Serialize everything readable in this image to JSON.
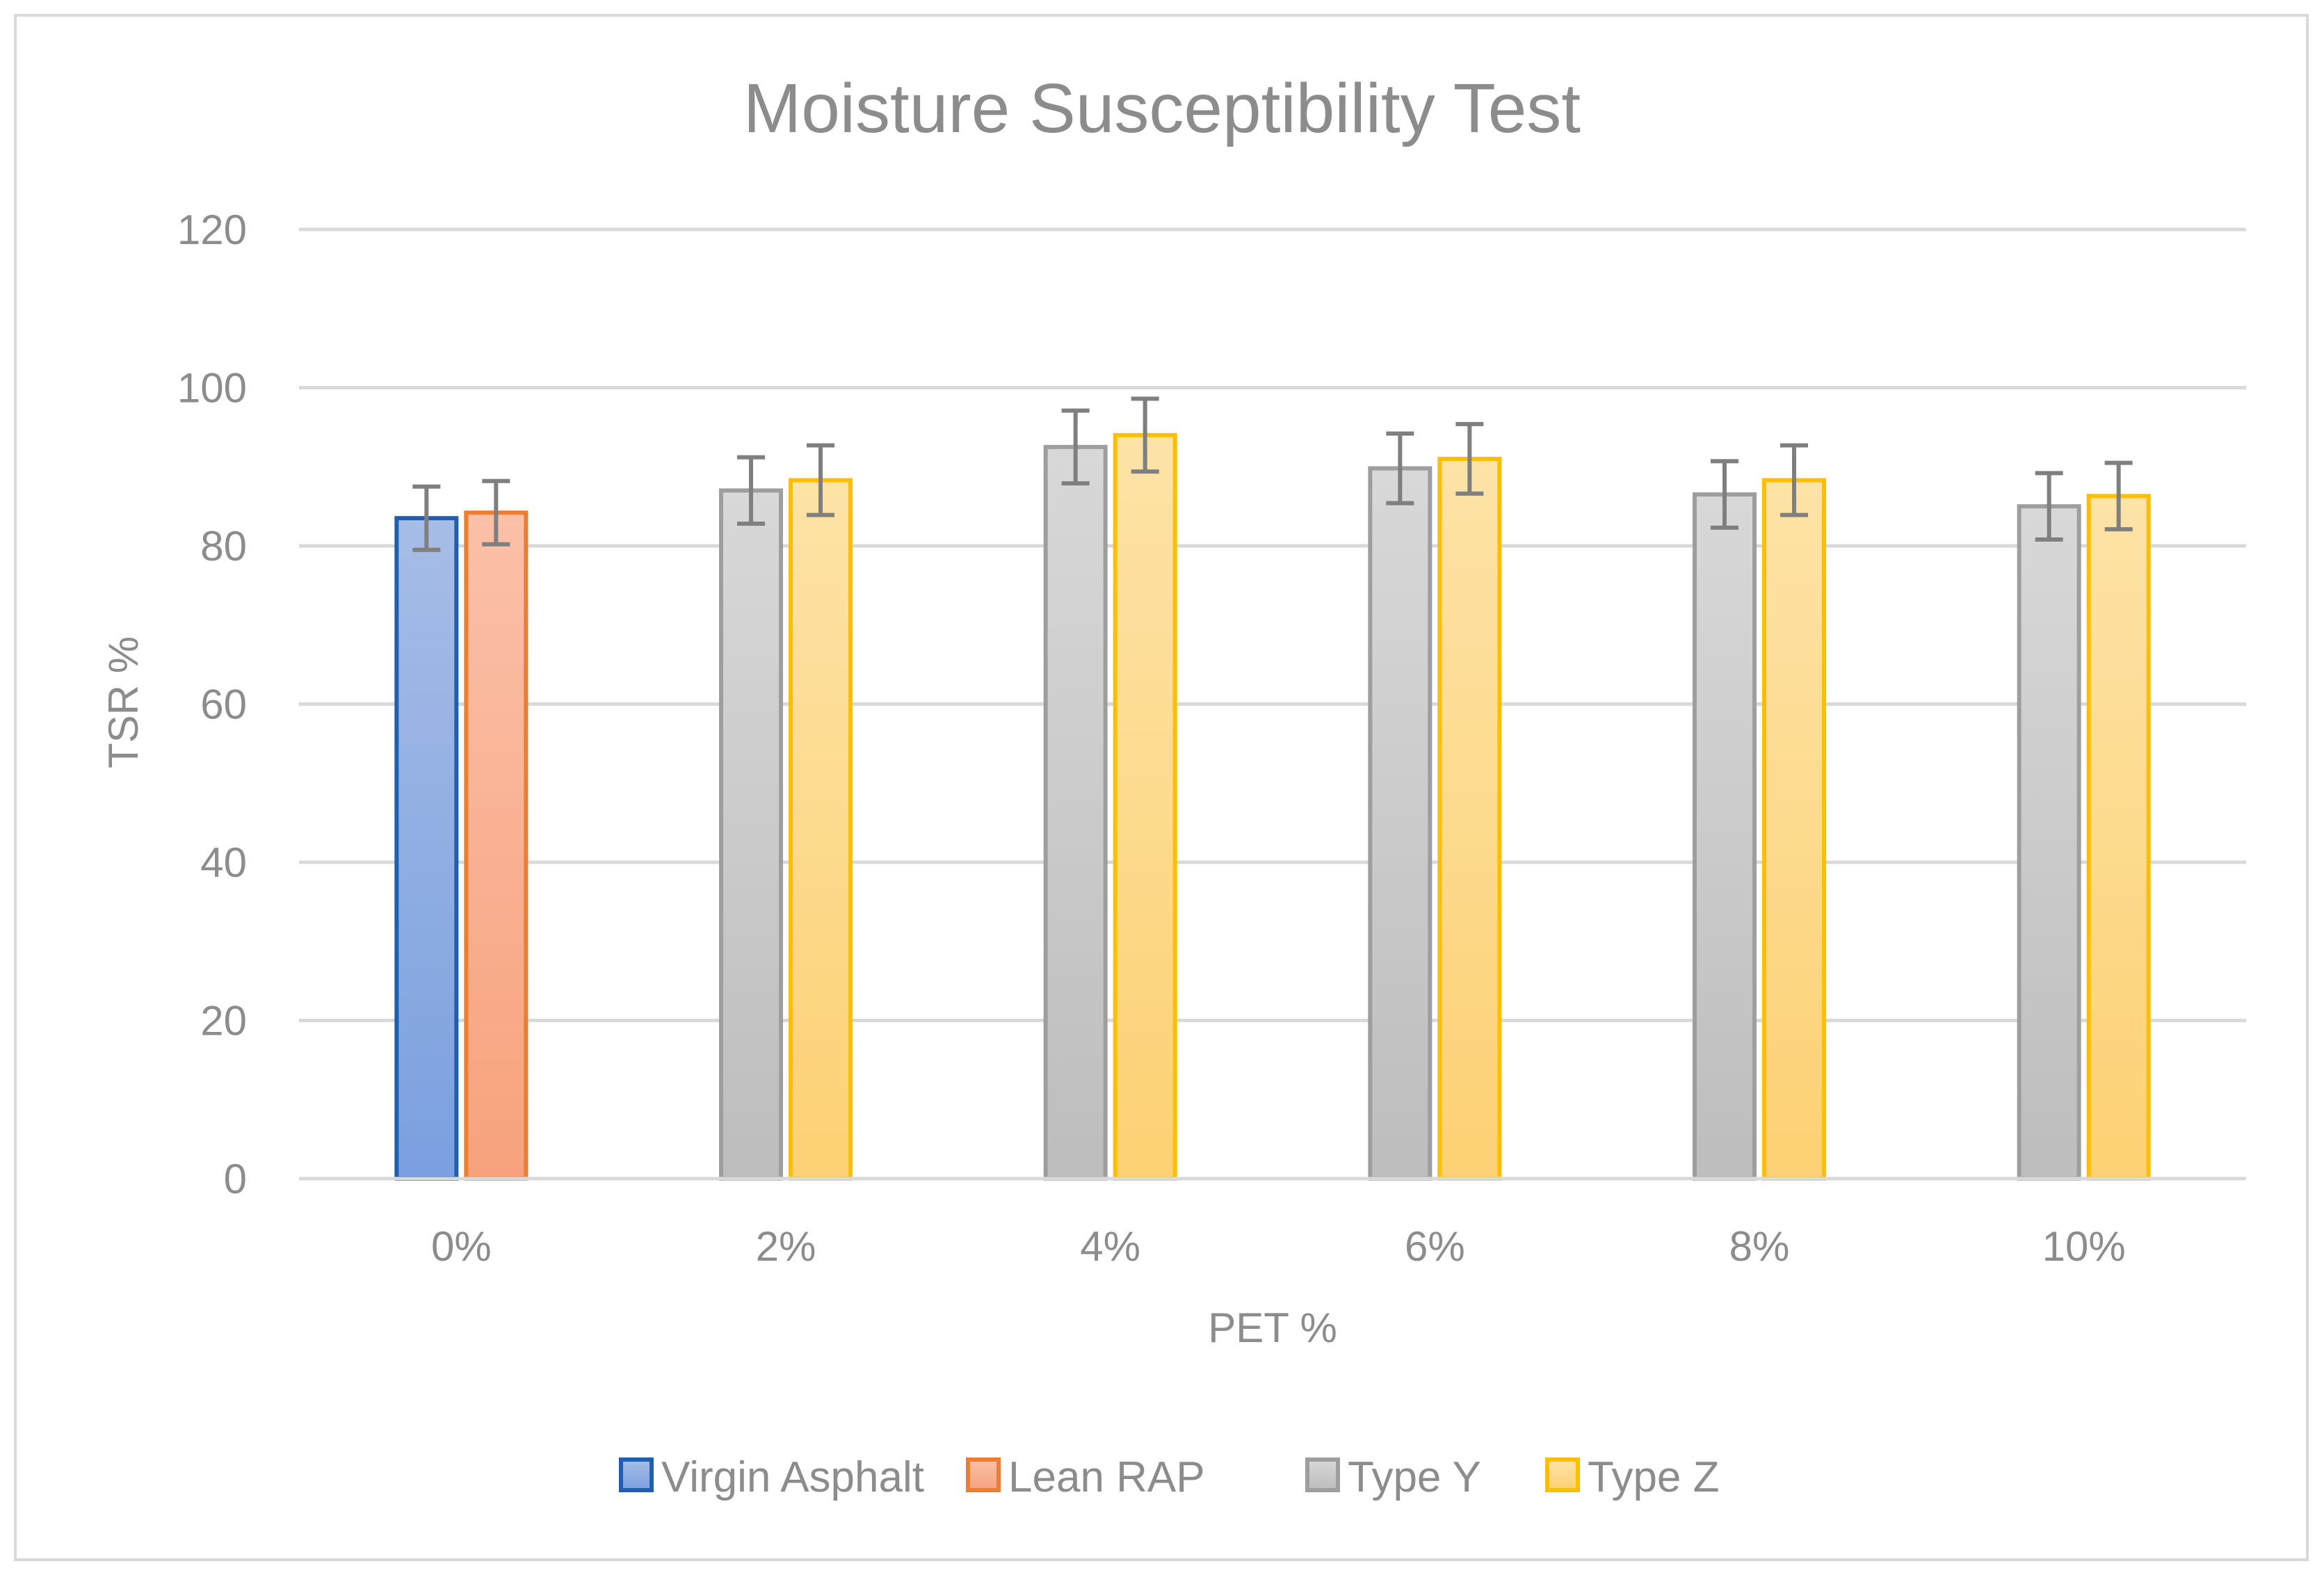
{
  "chart_data": {
    "type": "bar",
    "title": "Moisture Susceptibility Test",
    "xlabel": "PET %",
    "ylabel": "TSR %",
    "ylim": [
      0,
      120
    ],
    "yticks": [
      0,
      20,
      40,
      60,
      80,
      100,
      120
    ],
    "grid": true,
    "legend_position": "bottom",
    "categories": [
      "0%",
      "2%",
      "4%",
      "6%",
      "8%",
      "10%"
    ],
    "series": [
      {
        "name": "Virgin Asphalt",
        "values": [
          83.5,
          null,
          null,
          null,
          null,
          null
        ],
        "error": [
          4,
          null,
          null,
          null,
          null,
          null
        ],
        "fill_top": "#a6bde6",
        "fill_bottom": "#7b9fdf",
        "stroke": "#1f5fb0"
      },
      {
        "name": "Lean RAP",
        "values": [
          84.2,
          null,
          null,
          null,
          null,
          null
        ],
        "error": [
          4,
          null,
          null,
          null,
          null,
          null
        ],
        "fill_top": "#fbc0a8",
        "fill_bottom": "#f7a27d",
        "stroke": "#ed7d31"
      },
      {
        "name": "Type Y",
        "values": [
          null,
          87,
          92.5,
          89.8,
          86.5,
          85
        ],
        "error": [
          null,
          4.2,
          4.6,
          4.4,
          4.2,
          4.2
        ],
        "fill_top": "#d8d8d8",
        "fill_bottom": "#bdbdbd",
        "stroke": "#9e9e9e"
      },
      {
        "name": "Type Z",
        "values": [
          null,
          88.3,
          94,
          91,
          88.3,
          86.3
        ],
        "error": [
          null,
          4.4,
          4.6,
          4.4,
          4.4,
          4.2
        ],
        "fill_top": "#fde3a7",
        "fill_bottom": "#fdd174",
        "stroke": "#ffbf00"
      }
    ]
  }
}
